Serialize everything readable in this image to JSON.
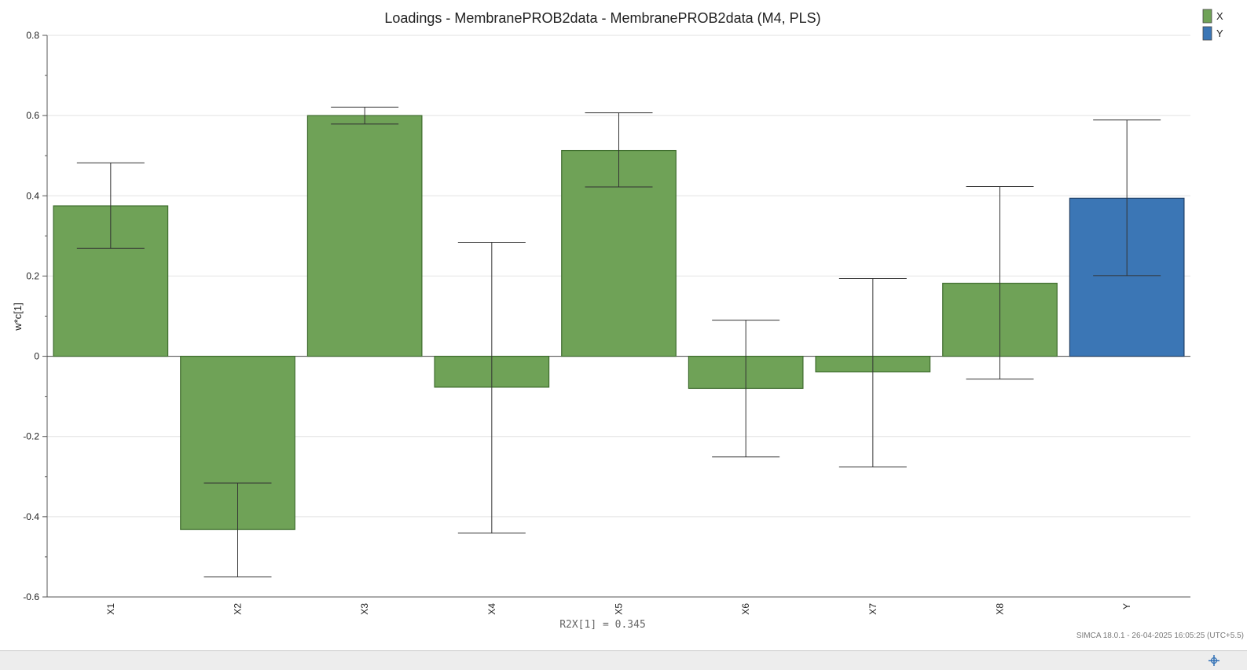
{
  "chart_data": {
    "type": "bar",
    "title": "Loadings - MembranePROB2data - MembranePROB2data (M4, PLS)",
    "xlabel": "R2X[1] = 0.345",
    "ylabel": "w*c[1]",
    "ylim": [
      -0.6,
      0.8
    ],
    "yticks": [
      0.8,
      0.6,
      0.4,
      0.2,
      0,
      -0.2,
      -0.4,
      -0.6
    ],
    "ytick_labels": [
      "0.8",
      "0.6",
      "0.4",
      "0.2",
      "0",
      "-0.2",
      "-0.4",
      "-0.6"
    ],
    "grid": true,
    "legend_position": "top-right",
    "categories": [
      "X1",
      "X2",
      "X3",
      "X4",
      "X5",
      "X6",
      "X7",
      "X8",
      "Y"
    ],
    "values": [
      0.375,
      -0.432,
      0.6,
      -0.077,
      0.513,
      -0.08,
      -0.039,
      0.182,
      0.394
    ],
    "error_low": [
      0.269,
      -0.55,
      0.579,
      -0.441,
      0.422,
      -0.251,
      -0.276,
      -0.057,
      0.201
    ],
    "error_high": [
      0.482,
      -0.316,
      0.621,
      0.284,
      0.607,
      0.09,
      0.194,
      0.423,
      0.589
    ],
    "groups": [
      "X",
      "X",
      "X",
      "X",
      "X",
      "X",
      "X",
      "X",
      "Y"
    ],
    "series": [
      {
        "name": "X",
        "color": "#6fa257"
      },
      {
        "name": "Y",
        "color": "#3b76b5"
      }
    ]
  },
  "footer": {
    "software": "SIMCA 18.0.1 - 26-04-2025 16:05:25 (UTC+5.5)"
  },
  "status_bar": {
    "icon": "crosshair-icon"
  }
}
